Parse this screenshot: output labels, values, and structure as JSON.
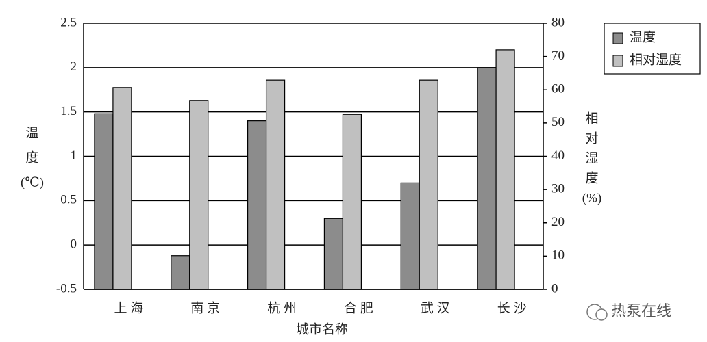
{
  "chart_data": {
    "type": "bar",
    "ylabel": [
      "温",
      "度",
      "(℃)"
    ],
    "y2label": [
      "相",
      "对",
      "湿",
      "度",
      "(%)"
    ],
    "xlabel": "城市名称",
    "categories": [
      "上 海",
      "南 京",
      "杭 州",
      "合 肥",
      "武 汉",
      "长 沙"
    ],
    "series": [
      {
        "name": "温度",
        "color": "#8c8c8c",
        "values": [
          1.48,
          -0.12,
          1.4,
          0.3,
          0.7,
          2.0
        ]
      },
      {
        "name": "相对湿度",
        "color": "#c0c0c0",
        "axis": "y2",
        "values": [
          60.7,
          56.8,
          62.9,
          52.6,
          62.9,
          72
        ]
      }
    ],
    "ylim": [
      -0.5,
      2.5
    ],
    "yticks": [
      -0.5,
      0,
      0.5,
      1,
      1.5,
      2,
      2.5
    ],
    "y2lim": [
      0,
      80
    ],
    "y2ticks": [
      0,
      10,
      20,
      30,
      40,
      50,
      60,
      70,
      80
    ],
    "grid": true,
    "legend": "top-right",
    "watermark": "热泵在线"
  }
}
